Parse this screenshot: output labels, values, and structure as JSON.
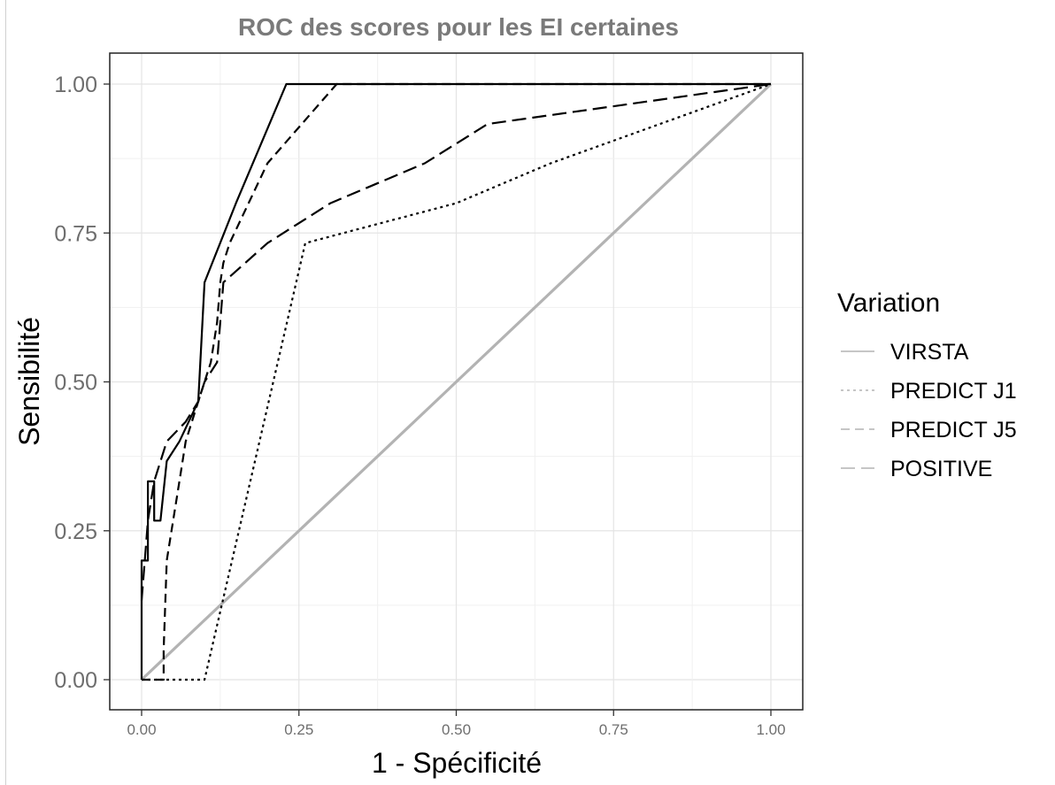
{
  "chart_data": {
    "type": "line",
    "title": "ROC des scores pour les EI certaines",
    "xlabel": "1 - Spécificité",
    "ylabel": "Sensibilité",
    "xlim": [
      0,
      1
    ],
    "ylim": [
      0,
      1
    ],
    "x_ticks": [
      "0.00",
      "0.25",
      "0.50",
      "0.75",
      "1.00"
    ],
    "y_ticks": [
      "0.00",
      "0.25",
      "0.50",
      "0.75",
      "1.00"
    ],
    "grid": true,
    "legend": {
      "title": "Variation",
      "placement": "right",
      "entries": [
        "VIRSTA",
        "PREDICT J1",
        "PREDICT J5",
        "POSITIVE"
      ]
    },
    "series": [
      {
        "name": "VIRSTA",
        "color": "#b3b3b3",
        "dash": "solid",
        "x": [
          0,
          1
        ],
        "y": [
          0,
          1
        ]
      },
      {
        "name": "PREDICT J1",
        "color": "#000000",
        "dash": "dotted",
        "x": [
          0,
          0.1,
          0.26,
          0.5,
          0.65,
          1.0
        ],
        "y": [
          0,
          0,
          0.733,
          0.8,
          0.867,
          1.0
        ]
      },
      {
        "name": "PREDICT J5",
        "color": "#000000",
        "dash": "dashed",
        "x": [
          0,
          0.035,
          0.035,
          0.04,
          0.05,
          0.06,
          0.07,
          0.09,
          0.11,
          0.12,
          0.125,
          0.13,
          0.14,
          0.2,
          0.31,
          1.0
        ],
        "y": [
          0,
          0,
          0.05,
          0.2,
          0.267,
          0.333,
          0.4,
          0.467,
          0.533,
          0.6,
          0.667,
          0.7,
          0.733,
          0.867,
          1.0,
          1.0
        ]
      },
      {
        "name": "POSITIVE",
        "color": "#000000",
        "dash": "longdash",
        "x": [
          0,
          0.005,
          0.01,
          0.02,
          0.04,
          0.07,
          0.09,
          0.1,
          0.12,
          0.13,
          0.2,
          0.3,
          0.45,
          0.55,
          1.0
        ],
        "y": [
          0.133,
          0.2,
          0.267,
          0.333,
          0.4,
          0.433,
          0.467,
          0.5,
          0.533,
          0.667,
          0.733,
          0.8,
          0.867,
          0.933,
          1.0
        ]
      },
      {
        "name": "",
        "color": "#000000",
        "dash": "solid",
        "x": [
          0,
          0,
          0.01,
          0.01,
          0.02,
          0.02,
          0.03,
          0.03,
          0.04,
          0.06,
          0.09,
          0.1,
          0.15,
          0.23,
          1.0
        ],
        "y": [
          0,
          0.2,
          0.2,
          0.333,
          0.333,
          0.267,
          0.267,
          0.267,
          0.367,
          0.4,
          0.467,
          0.667,
          0.8,
          1.0,
          1.0
        ]
      }
    ]
  }
}
